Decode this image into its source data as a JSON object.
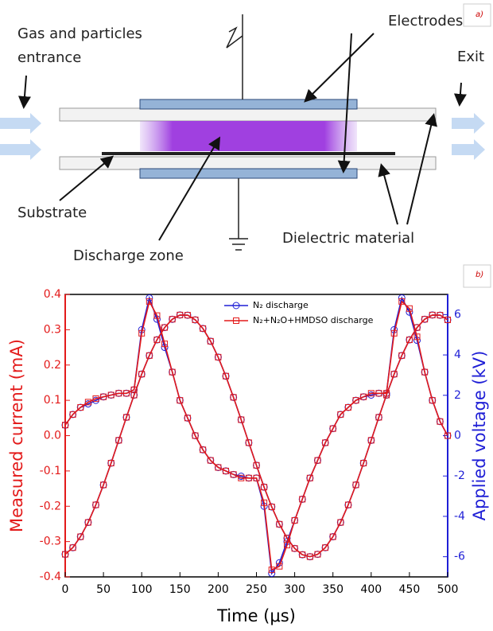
{
  "diagram": {
    "panel_label": "a)",
    "gas_label": [
      "Gas and particles",
      "entrance"
    ],
    "electrodes_label": "Electrodes",
    "exit_label": "Exit",
    "substrate_label": "Substrate",
    "discharge_label": "Discharge zone",
    "dielectric_label": "Dielectric material"
  },
  "chart_data": {
    "type": "line",
    "panel_label": "b)",
    "x_label": "Time (μs)",
    "y_label": "Measured current (mA)",
    "y2_label": "Applied voltage (kV)",
    "x": [
      0,
      10,
      20,
      30,
      40,
      50,
      60,
      70,
      80,
      90,
      100,
      110,
      120,
      130,
      140,
      150,
      160,
      170,
      180,
      190,
      200,
      210,
      220,
      230,
      240,
      250,
      260,
      270,
      280,
      290,
      300,
      310,
      320,
      330,
      340,
      350,
      360,
      370,
      380,
      390,
      400,
      410,
      420,
      430,
      440,
      450,
      460,
      470,
      480,
      490,
      500
    ],
    "xlim": [
      0,
      500
    ],
    "xticks": [
      0,
      50,
      100,
      150,
      200,
      250,
      300,
      350,
      400,
      450,
      500
    ],
    "ylim": [
      -0.4,
      0.4
    ],
    "yticks": [
      -0.4,
      -0.3,
      -0.2,
      -0.1,
      {
        "value": 0,
        "label": "0.0"
      },
      0.1,
      0.2,
      0.3,
      0.4
    ],
    "y2lim": [
      -7,
      7
    ],
    "y2ticks": [
      -6,
      -4,
      -2,
      0,
      2,
      4,
      6
    ],
    "series": [
      {
        "name": "N₂ discharge",
        "color": "#1f1fd6",
        "marker": "circle",
        "values": [
          0.03,
          0.06,
          0.08,
          0.09,
          0.1,
          0.11,
          0.115,
          0.12,
          0.12,
          0.13,
          0.3,
          0.39,
          0.33,
          0.25,
          0.18,
          0.1,
          0.05,
          0.0,
          -0.04,
          -0.07,
          -0.09,
          -0.1,
          -0.11,
          -0.115,
          -0.12,
          -0.12,
          -0.2,
          -0.39,
          -0.36,
          -0.3,
          -0.24,
          -0.18,
          -0.12,
          -0.07,
          -0.02,
          0.02,
          0.06,
          0.08,
          0.1,
          0.11,
          0.115,
          0.12,
          0.12,
          0.3,
          0.39,
          0.35,
          0.27,
          0.18,
          0.1,
          0.04,
          0.0
        ]
      },
      {
        "color": "#1f1fd6",
        "marker": "circle",
        "axis": "y2",
        "values": [
          -5.88,
          -5.55,
          -5.01,
          -4.3,
          -3.43,
          -2.44,
          -1.36,
          -0.23,
          0.91,
          2.01,
          3.05,
          3.97,
          4.75,
          5.36,
          5.77,
          5.98,
          5.97,
          5.74,
          5.31,
          4.68,
          3.89,
          2.95,
          1.9,
          0.79,
          -0.35,
          -1.47,
          -2.55,
          -3.53,
          -4.39,
          -5.08,
          -5.59,
          -5.9,
          -6.0,
          -5.88,
          -5.55,
          -5.01,
          -4.3,
          -3.43,
          -2.44,
          -1.36,
          -0.23,
          0.91,
          2.01,
          3.05,
          3.97,
          4.75,
          5.36,
          5.77,
          5.98,
          5.97,
          5.74
        ]
      },
      {
        "name": "N₂+N₂O+HMDSO discharge",
        "color": "#e31a1a",
        "marker": "square",
        "values": [
          0.03,
          0.06,
          0.08,
          0.095,
          0.105,
          0.11,
          0.115,
          0.12,
          0.12,
          0.13,
          0.29,
          0.38,
          0.34,
          0.26,
          0.18,
          0.1,
          0.05,
          0.0,
          -0.04,
          -0.07,
          -0.09,
          -0.1,
          -0.11,
          -0.12,
          -0.12,
          -0.12,
          -0.19,
          -0.38,
          -0.37,
          -0.31,
          -0.24,
          -0.18,
          -0.12,
          -0.07,
          -0.02,
          0.02,
          0.06,
          0.08,
          0.1,
          0.11,
          0.12,
          0.12,
          0.12,
          0.29,
          0.38,
          0.36,
          0.28,
          0.18,
          0.1,
          0.04,
          0.0
        ]
      },
      {
        "color": "#e31a1a",
        "marker": "square",
        "axis": "y2",
        "values": [
          -5.88,
          -5.55,
          -5.01,
          -4.3,
          -3.43,
          -2.44,
          -1.36,
          -0.23,
          0.91,
          2.01,
          3.05,
          3.97,
          4.75,
          5.36,
          5.77,
          5.98,
          5.97,
          5.74,
          5.31,
          4.68,
          3.89,
          2.95,
          1.9,
          0.79,
          -0.35,
          -1.47,
          -2.55,
          -3.53,
          -4.39,
          -5.08,
          -5.59,
          -5.9,
          -6.0,
          -5.88,
          -5.55,
          -5.01,
          -4.3,
          -3.43,
          -2.44,
          -1.36,
          -0.23,
          0.91,
          2.01,
          3.05,
          3.97,
          4.75,
          5.36,
          5.77,
          5.98,
          5.97,
          5.74
        ]
      }
    ]
  }
}
